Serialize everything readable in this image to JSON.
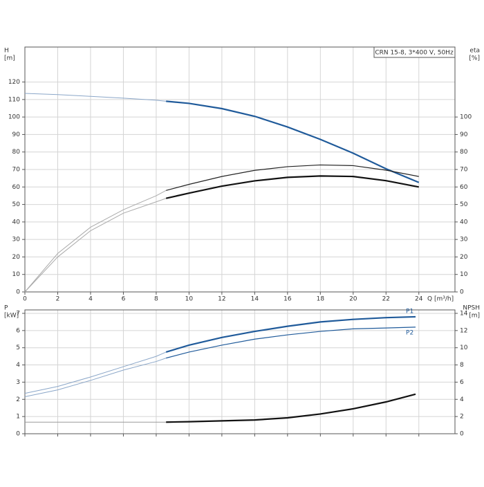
{
  "chart_data": [
    {
      "type": "line",
      "title": "CRN 15-8, 3*400 V, 50Hz",
      "x_label": "Q [m³/h]",
      "y_label": [
        "H",
        "[m]"
      ],
      "y2_label": [
        "eta",
        "[%]"
      ],
      "xlim": [
        0,
        26.2
      ],
      "xticks": [
        0,
        2,
        4,
        6,
        8,
        10,
        12,
        14,
        16,
        18,
        20,
        22,
        24
      ],
      "ylim": [
        0,
        140
      ],
      "yticks": [
        0,
        10,
        20,
        30,
        40,
        50,
        60,
        70,
        80,
        90,
        100,
        110,
        120
      ],
      "y2lim": [
        0,
        140
      ],
      "y2ticks": [
        0,
        10,
        20,
        30,
        40,
        50,
        60,
        70,
        80,
        90,
        100
      ],
      "grid": true,
      "x": [
        0,
        2,
        4,
        6,
        8,
        8.6,
        10,
        12,
        14,
        16,
        18,
        20,
        22,
        24
      ],
      "series": [
        {
          "color": "#8aa6c8",
          "width": 1,
          "values": [
            113.5,
            112.8,
            111.8,
            110.8,
            109.6,
            109,
            null,
            null,
            null,
            null,
            null,
            null,
            null,
            null
          ]
        },
        {
          "color": "#1f5a9a",
          "width": 2.2,
          "values": [
            null,
            null,
            null,
            null,
            null,
            109,
            107.8,
            104.8,
            100.4,
            94.3,
            87.2,
            79.3,
            70.4,
            62.6
          ]
        },
        {
          "color": "#aaaaaa",
          "width": 1,
          "axis": "y2",
          "values": [
            0,
            22,
            37,
            47,
            55,
            58,
            null,
            null,
            null,
            null,
            null,
            null,
            null,
            null
          ]
        },
        {
          "color": "#222222",
          "width": 1.2,
          "axis": "y2",
          "values": [
            null,
            null,
            null,
            null,
            null,
            58,
            61.5,
            66,
            69.5,
            71.6,
            72.6,
            72.2,
            69.6,
            66
          ]
        },
        {
          "color": "#aaaaaa",
          "width": 1,
          "axis": "y2",
          "values": [
            0,
            20,
            35,
            45,
            51.5,
            53.5,
            null,
            null,
            null,
            null,
            null,
            null,
            null,
            null
          ]
        },
        {
          "color": "#111111",
          "width": 2.2,
          "axis": "y2",
          "values": [
            null,
            null,
            null,
            null,
            null,
            53.5,
            56.5,
            60.5,
            63.5,
            65.5,
            66.3,
            66,
            63.6,
            60
          ]
        }
      ]
    },
    {
      "type": "line",
      "y_label": [
        "P",
        "[kW]"
      ],
      "y2_label": [
        "NPSH",
        "[m]"
      ],
      "xlim": [
        0,
        26.2
      ],
      "ylim": [
        0,
        7.2
      ],
      "yticks": [
        0,
        1,
        2,
        3,
        4,
        5,
        6,
        7
      ],
      "y2lim": [
        0,
        14.4
      ],
      "y2ticks": [
        0,
        2,
        4,
        6,
        8,
        10,
        12,
        14
      ],
      "grid": true,
      "x": [
        0,
        2,
        4,
        6,
        8,
        8.6,
        10,
        12,
        14,
        16,
        18,
        20,
        22,
        23.8
      ],
      "series": [
        {
          "color": "#8aa6c8",
          "width": 1,
          "values": [
            2.35,
            2.75,
            3.3,
            3.9,
            4.5,
            4.75,
            null,
            null,
            null,
            null,
            null,
            null,
            null,
            null
          ]
        },
        {
          "name": "P1",
          "color": "#1f5a9a",
          "width": 2.2,
          "values": [
            null,
            null,
            null,
            null,
            null,
            4.75,
            5.15,
            5.6,
            5.95,
            6.25,
            6.5,
            6.65,
            6.75,
            6.8
          ]
        },
        {
          "color": "#8aa6c8",
          "width": 1,
          "values": [
            2.15,
            2.55,
            3.1,
            3.7,
            4.2,
            4.4,
            null,
            null,
            null,
            null,
            null,
            null,
            null,
            null
          ]
        },
        {
          "name": "P2",
          "color": "#1f5a9a",
          "width": 1.2,
          "values": [
            null,
            null,
            null,
            null,
            null,
            4.4,
            4.75,
            5.15,
            5.5,
            5.75,
            5.95,
            6.1,
            6.15,
            6.2
          ]
        },
        {
          "color": "#999999",
          "width": 1,
          "axis": "y2",
          "values": [
            1.35,
            1.35,
            1.35,
            1.35,
            1.35,
            1.35,
            null,
            null,
            null,
            null,
            null,
            null,
            null,
            null
          ]
        },
        {
          "color": "#111111",
          "width": 2.2,
          "axis": "y2",
          "values": [
            null,
            null,
            null,
            null,
            null,
            1.35,
            1.4,
            1.5,
            1.6,
            1.85,
            2.3,
            2.9,
            3.7,
            4.6
          ]
        }
      ]
    }
  ]
}
